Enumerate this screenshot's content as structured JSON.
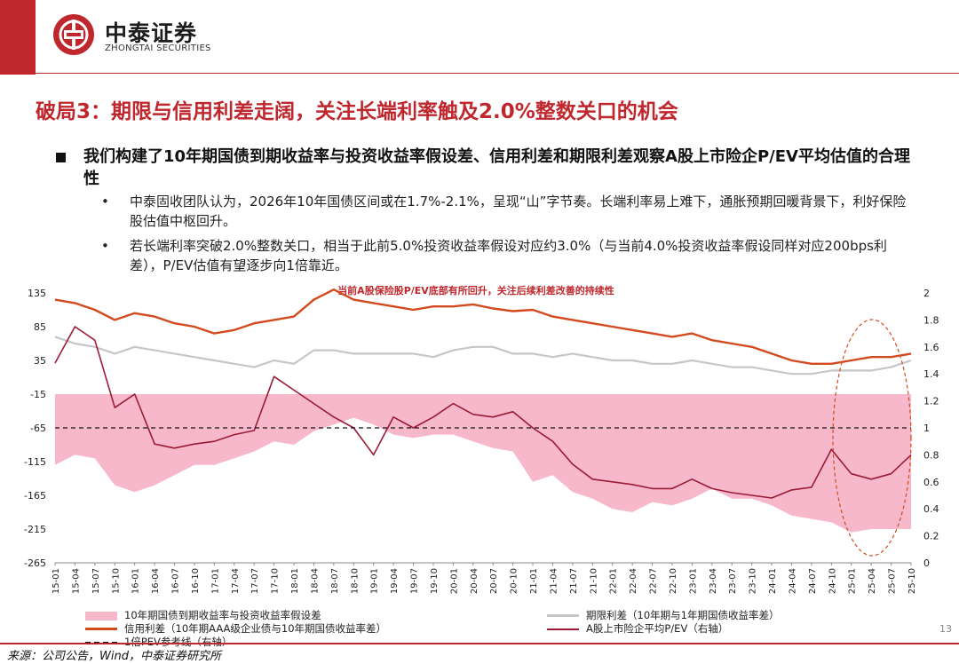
{
  "brand": {
    "name_cn": "中泰证券",
    "name_en": "ZHONGTAI SECURITIES"
  },
  "title": "破局3：期限与信用利差走阔，关注长端利率触及2.0%整数关口的机会",
  "bullet_main": "我们构建了10年期国债到期收益率与投资收益率假设差、信用利差和期限利差观察A股上市险企P/EV平均估值的合理性",
  "sub_bullets": [
    "中泰固收团队认为，2026年10年国债区间或在1.7%-2.1%，呈现“山”字节奏。长端利率易上难下，通胀预期回暖背景下，利好保险股估值中枢回升。",
    "若长端利率突破2.0%整数关口，相当于此前5.0%投资收益率假设对应约3.0%（与当前4.0%投资收益率假设同样对应200bps利差），P/EV估值有望逐步向1倍靠近。"
  ],
  "bullet_symbol": "•",
  "source": "来源：公司公告，Wind，中泰证券研究所",
  "page_number": "13",
  "colors": {
    "brand_red": "#c0272d",
    "pink": "#f7b8cb",
    "gray": "#c6c6c6",
    "orange": "#d24a1e",
    "crimson": "#9b1b36"
  },
  "chart_data": {
    "type": "line",
    "annotation": "当前A股保险股P/EV底部有所回升，关注后续利差改善的持续性",
    "y_left": {
      "ticks": [
        135,
        85,
        35,
        -15,
        -65,
        -115,
        -165,
        -215,
        -265
      ],
      "range": [
        -265,
        135
      ]
    },
    "y_right": {
      "ticks": [
        "2",
        "1.8",
        "1.6",
        "1.4",
        "1.2",
        "1",
        "0.8",
        "0.6",
        "0.4",
        "0.2",
        "0"
      ],
      "range": [
        0,
        2
      ]
    },
    "x_labels": [
      "15-01",
      "15-04",
      "15-07",
      "15-10",
      "16-01",
      "16-04",
      "16-07",
      "16-10",
      "17-01",
      "17-04",
      "17-07",
      "17-10",
      "18-01",
      "18-04",
      "18-07",
      "18-10",
      "19-01",
      "19-04",
      "19-07",
      "19-10",
      "20-01",
      "20-04",
      "20-07",
      "20-10",
      "21-01",
      "21-04",
      "21-07",
      "21-10",
      "22-01",
      "22-04",
      "22-07",
      "22-10",
      "23-01",
      "23-04",
      "23-07",
      "23-10",
      "24-01",
      "24-04",
      "24-07",
      "24-10",
      "25-01",
      "25-04",
      "25-07",
      "25-10"
    ],
    "series": [
      {
        "name": "10年期国债到期收益率与投资收益率假设差",
        "axis": "left",
        "style": "area",
        "values": [
          -120,
          -105,
          -110,
          -150,
          -160,
          -150,
          -135,
          -120,
          -120,
          -110,
          -100,
          -85,
          -90,
          -70,
          -60,
          -50,
          -60,
          -75,
          -80,
          -75,
          -75,
          -85,
          -95,
          -100,
          -145,
          -135,
          -160,
          -170,
          -185,
          -190,
          -175,
          -180,
          -170,
          -155,
          -170,
          -170,
          -180,
          -195,
          -200,
          -205,
          -220,
          -215,
          -215,
          -215
        ]
      },
      {
        "name": "期限利差（10年期与1年期国债收益率差）",
        "axis": "left",
        "style": "line",
        "values": [
          70,
          60,
          55,
          45,
          55,
          50,
          45,
          40,
          35,
          30,
          25,
          35,
          30,
          50,
          50,
          45,
          45,
          45,
          45,
          40,
          50,
          55,
          55,
          45,
          45,
          40,
          45,
          40,
          35,
          35,
          30,
          30,
          35,
          30,
          25,
          25,
          20,
          15,
          15,
          20,
          20,
          20,
          25,
          35
        ]
      },
      {
        "name": "信用利差（10年期AAA级企业债与10年期国债收益率差）",
        "axis": "left",
        "style": "line",
        "values": [
          125,
          120,
          110,
          95,
          105,
          100,
          90,
          85,
          75,
          80,
          90,
          95,
          100,
          125,
          140,
          125,
          120,
          115,
          110,
          115,
          115,
          118,
          112,
          108,
          110,
          100,
          95,
          90,
          85,
          80,
          75,
          70,
          75,
          65,
          60,
          55,
          45,
          35,
          30,
          30,
          35,
          40,
          40,
          45
        ]
      },
      {
        "name": "A股上市险企平均P/EV（右轴）",
        "axis": "right",
        "style": "line",
        "values": [
          1.48,
          1.75,
          1.65,
          1.15,
          1.25,
          0.88,
          0.85,
          0.88,
          0.9,
          0.95,
          0.98,
          1.38,
          1.28,
          1.18,
          1.08,
          1.0,
          0.8,
          1.08,
          1.0,
          1.08,
          1.18,
          1.1,
          1.08,
          1.12,
          1.0,
          0.9,
          0.73,
          0.62,
          0.6,
          0.58,
          0.55,
          0.55,
          0.62,
          0.55,
          0.52,
          0.5,
          0.48,
          0.54,
          0.56,
          0.84,
          0.66,
          0.62,
          0.66,
          0.8
        ]
      },
      {
        "name": "1倍PEV参考线（右轴）",
        "axis": "right",
        "style": "dashed",
        "values": [
          1
        ]
      }
    ],
    "legend": [
      {
        "label": "10年期国债到期收益率与投资收益率假设差",
        "kind": "area",
        "color": "#f7b8cb"
      },
      {
        "label": "期限利差（10年期与1年期国债收益率差）",
        "kind": "line",
        "color": "#c6c6c6"
      },
      {
        "label": "信用利差（10年期AAA级企业债与10年期国债收益率差）",
        "kind": "line",
        "color": "#d24a1e"
      },
      {
        "label": "A股上市险企平均P/EV（右轴）",
        "kind": "line",
        "color": "#9b1b36"
      },
      {
        "label": "1倍PEV参考线（右轴）",
        "kind": "dashed",
        "color": "#111111"
      }
    ]
  }
}
